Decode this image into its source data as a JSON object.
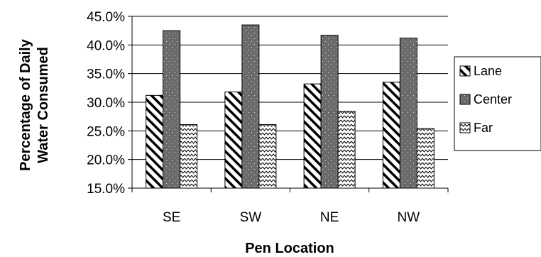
{
  "chart_data": {
    "type": "bar",
    "title": "",
    "xlabel": "Pen Location",
    "ylabel": [
      "Percentage of Daily",
      "Water Consumed"
    ],
    "categories": [
      "SE",
      "SW",
      "NE",
      "NW"
    ],
    "series": [
      {
        "name": "Lane",
        "values": [
          31.2,
          31.8,
          33.2,
          33.5
        ],
        "pattern": "diagonal-stripes"
      },
      {
        "name": "Center",
        "values": [
          42.5,
          43.5,
          41.7,
          41.2
        ],
        "pattern": "dark-dotted"
      },
      {
        "name": "Far",
        "values": [
          26.1,
          26.1,
          28.4,
          25.4
        ],
        "pattern": "zigzag"
      }
    ],
    "ylim": [
      15,
      45
    ],
    "yticks": [
      15,
      20,
      25,
      30,
      35,
      40,
      45
    ],
    "ytick_labels": [
      "15.0%",
      "20.0%",
      "25.0%",
      "30.0%",
      "35.0%",
      "40.0%",
      "45.0%"
    ],
    "grid": true,
    "legend_position": "right",
    "colors": {
      "bar_fill": "#ffffff",
      "center_fill": "#6b6b6b",
      "stroke": "#000000"
    }
  }
}
